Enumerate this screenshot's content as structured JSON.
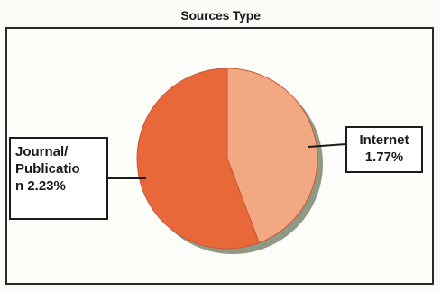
{
  "chart_data": {
    "type": "pie",
    "title": "Sources Type",
    "slices": [
      {
        "label": "Internet",
        "value": 1.77,
        "display": "Internet\n1.77%",
        "color": "#f2a880"
      },
      {
        "label": "Journal/Publication",
        "value": 2.23,
        "display": "Journal/\nPublicatio\nn 2.23%",
        "color": "#e8683a"
      }
    ],
    "shadow_color": "#8e9a84",
    "legend": "none"
  }
}
